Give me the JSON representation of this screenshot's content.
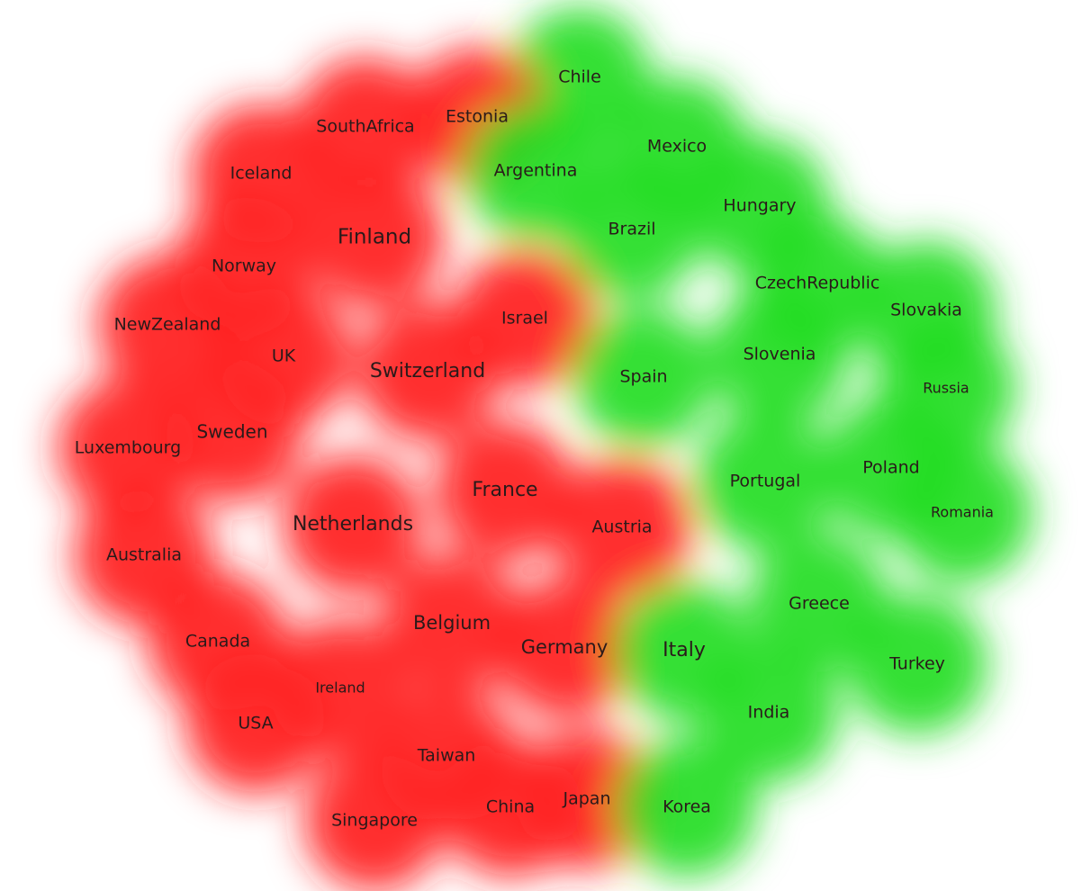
{
  "nodes": [
    {
      "label": "Chile",
      "color": "#22dd22"
    },
    {
      "label": "SouthAfrica",
      "color": "#ff2020"
    },
    {
      "label": "Estonia",
      "color": "#ff2020"
    },
    {
      "label": "Mexico",
      "color": "#22dd22"
    },
    {
      "label": "Iceland",
      "color": "#ff2020"
    },
    {
      "label": "Argentina",
      "color": "#22dd22"
    },
    {
      "label": "Hungary",
      "color": "#22dd22"
    },
    {
      "label": "Brazil",
      "color": "#22dd22"
    },
    {
      "label": "Finland",
      "color": "#ff2020"
    },
    {
      "label": "Norway",
      "color": "#ff2020"
    },
    {
      "label": "CzechRepublic",
      "color": "#22dd22"
    },
    {
      "label": "Israel",
      "color": "#ff2020"
    },
    {
      "label": "Slovakia",
      "color": "#22dd22"
    },
    {
      "label": "NewZealand",
      "color": "#ff2020"
    },
    {
      "label": "UK",
      "color": "#ff2020"
    },
    {
      "label": "Switzerland",
      "color": "#ff2020"
    },
    {
      "label": "Slovenia",
      "color": "#22dd22"
    },
    {
      "label": "Spain",
      "color": "#22dd22"
    },
    {
      "label": "Russia",
      "color": "#22dd22"
    },
    {
      "label": "Sweden",
      "color": "#ff2020"
    },
    {
      "label": "Luxembourg",
      "color": "#ff2020"
    },
    {
      "label": "France",
      "color": "#ff2020"
    },
    {
      "label": "Portugal",
      "color": "#22dd22"
    },
    {
      "label": "Poland",
      "color": "#22dd22"
    },
    {
      "label": "Romania",
      "color": "#22dd22"
    },
    {
      "label": "Netherlands",
      "color": "#ff2020"
    },
    {
      "label": "Austria",
      "color": "#ff2020"
    },
    {
      "label": "Australia",
      "color": "#ff2020"
    },
    {
      "label": "Greece",
      "color": "#22dd22"
    },
    {
      "label": "Belgium",
      "color": "#ff2020"
    },
    {
      "label": "Canada",
      "color": "#ff2020"
    },
    {
      "label": "Germany",
      "color": "#ff2020"
    },
    {
      "label": "Italy",
      "color": "#22dd22"
    },
    {
      "label": "Turkey",
      "color": "#22dd22"
    },
    {
      "label": "Ireland",
      "color": "#ff2020"
    },
    {
      "label": "India",
      "color": "#22dd22"
    },
    {
      "label": "USA",
      "color": "#ff2020"
    },
    {
      "label": "Taiwan",
      "color": "#ff2020"
    },
    {
      "label": "Japan",
      "color": "#ff2020"
    },
    {
      "label": "China",
      "color": "#ff2020"
    },
    {
      "label": "Korea",
      "color": "#22dd22"
    },
    {
      "label": "Singapore",
      "color": "#ff2020"
    }
  ]
}
